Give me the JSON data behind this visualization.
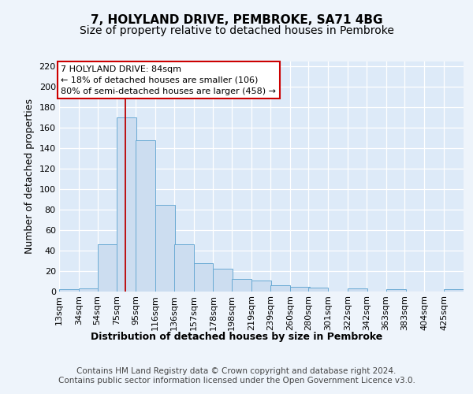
{
  "title1": "7, HOLYLAND DRIVE, PEMBROKE, SA71 4BG",
  "title2": "Size of property relative to detached houses in Pembroke",
  "xlabel": "Distribution of detached houses by size in Pembroke",
  "ylabel": "Number of detached properties",
  "bins": [
    13,
    34,
    54,
    75,
    95,
    116,
    136,
    157,
    178,
    198,
    219,
    239,
    260,
    280,
    301,
    322,
    342,
    363,
    383,
    404,
    425
  ],
  "counts": [
    2,
    3,
    46,
    170,
    148,
    85,
    46,
    28,
    22,
    12,
    11,
    6,
    5,
    4,
    0,
    3,
    0,
    2,
    0,
    0,
    2
  ],
  "bar_color": "#ccddf0",
  "bar_edge_color": "#6aaad4",
  "red_line_x": 84,
  "ylim": [
    0,
    225
  ],
  "yticks": [
    0,
    20,
    40,
    60,
    80,
    100,
    120,
    140,
    160,
    180,
    200,
    220
  ],
  "annotation_line1": "7 HOLYLAND DRIVE: 84sqm",
  "annotation_line2": "← 18% of detached houses are smaller (106)",
  "annotation_line3": "80% of semi-detached houses are larger (458) →",
  "annotation_box_fc": "#ffffff",
  "annotation_box_ec": "#cc0000",
  "footer1": "Contains HM Land Registry data © Crown copyright and database right 2024.",
  "footer2": "Contains public sector information licensed under the Open Government Licence v3.0.",
  "plot_bg_color": "#ddeaf8",
  "fig_bg_color": "#eef4fb",
  "grid_color": "#ffffff",
  "title1_fontsize": 11,
  "title2_fontsize": 10,
  "xlabel_fontsize": 9,
  "ylabel_fontsize": 9,
  "tick_fontsize": 8,
  "annotation_fontsize": 8,
  "footer_fontsize": 7.5
}
